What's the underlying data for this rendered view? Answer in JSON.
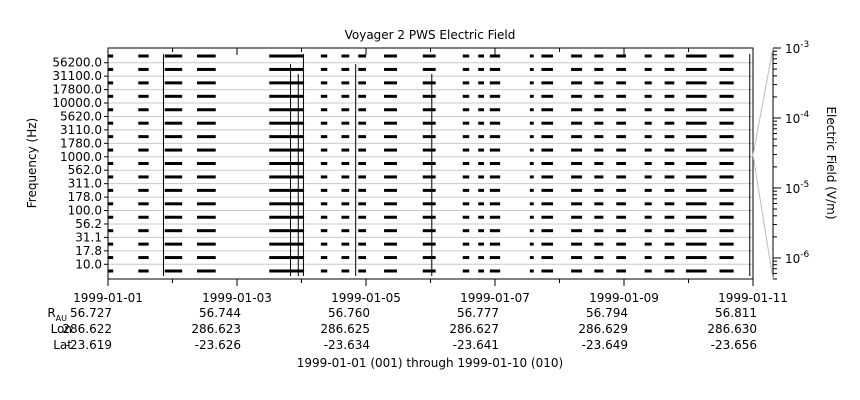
{
  "chart_data": {
    "type": "line",
    "title": "Voyager 2 PWS Electric Field",
    "ylabel": "Frequency (Hz)",
    "y2label": "Electric Field (V/m)",
    "xlabel": "1999-01-01 (001) through 1999-01-10 (010)",
    "xlim": [
      "1999-01-01",
      "1999-01-11"
    ],
    "x_tick_labels": [
      "1999-01-01",
      "1999-01-03",
      "1999-01-05",
      "1999-01-07",
      "1999-01-09",
      "1999-01-11"
    ],
    "channels": [
      "56200.0",
      "31100.0",
      "17800.0",
      "10000.0",
      "5620.0",
      "3110.0",
      "1780.0",
      "1000.0",
      "562.0",
      "311.0",
      "178.0",
      "100.0",
      "56.2",
      "31.1",
      "17.8",
      "10.0"
    ],
    "colorbar": {
      "scale": "log",
      "range": [
        5e-07,
        0.001
      ],
      "tick_labels": [
        {
          "base": "10",
          "exp": "-3"
        },
        {
          "base": "10",
          "exp": "-4"
        },
        {
          "base": "10",
          "exp": "-5"
        },
        {
          "base": "10",
          "exp": "-6"
        }
      ]
    },
    "ephemeris": {
      "row_labels": {
        "r_main": "R",
        "r_sub": "AU",
        "lon": "Lon",
        "lat": "Lat"
      },
      "columns": [
        {
          "r": "56.727",
          "lon": "286.622",
          "lat": "-23.619"
        },
        {
          "r": "56.744",
          "lon": "286.623",
          "lat": "-23.626"
        },
        {
          "r": "56.760",
          "lon": "286.625",
          "lat": "-23.634"
        },
        {
          "r": "56.777",
          "lon": "286.627",
          "lat": "-23.641"
        },
        {
          "r": "56.794",
          "lon": "286.629",
          "lat": "-23.649"
        },
        {
          "r": "56.811",
          "lon": "286.630",
          "lat": "-23.656"
        }
      ]
    },
    "data_segments_days": [
      [
        0.0,
        0.08
      ],
      [
        0.47,
        0.63
      ],
      [
        0.88,
        1.15
      ],
      [
        1.38,
        1.67
      ],
      [
        2.5,
        3.04
      ],
      [
        3.3,
        3.4
      ],
      [
        3.62,
        3.74
      ],
      [
        3.88,
        4.0
      ],
      [
        4.28,
        4.48
      ],
      [
        4.88,
        5.08
      ],
      [
        5.5,
        5.6
      ],
      [
        5.74,
        5.83
      ],
      [
        5.92,
        6.08
      ],
      [
        6.54,
        6.6
      ],
      [
        6.72,
        6.9
      ],
      [
        7.18,
        7.35
      ],
      [
        7.54,
        7.68
      ],
      [
        7.88,
        8.03
      ],
      [
        8.32,
        8.43
      ],
      [
        8.63,
        8.78
      ],
      [
        8.96,
        9.28
      ],
      [
        9.48,
        9.7
      ]
    ],
    "spikes_days": [
      0.86,
      2.83,
      2.95,
      3.03,
      3.84,
      5.02,
      9.95
    ],
    "grid": true
  }
}
